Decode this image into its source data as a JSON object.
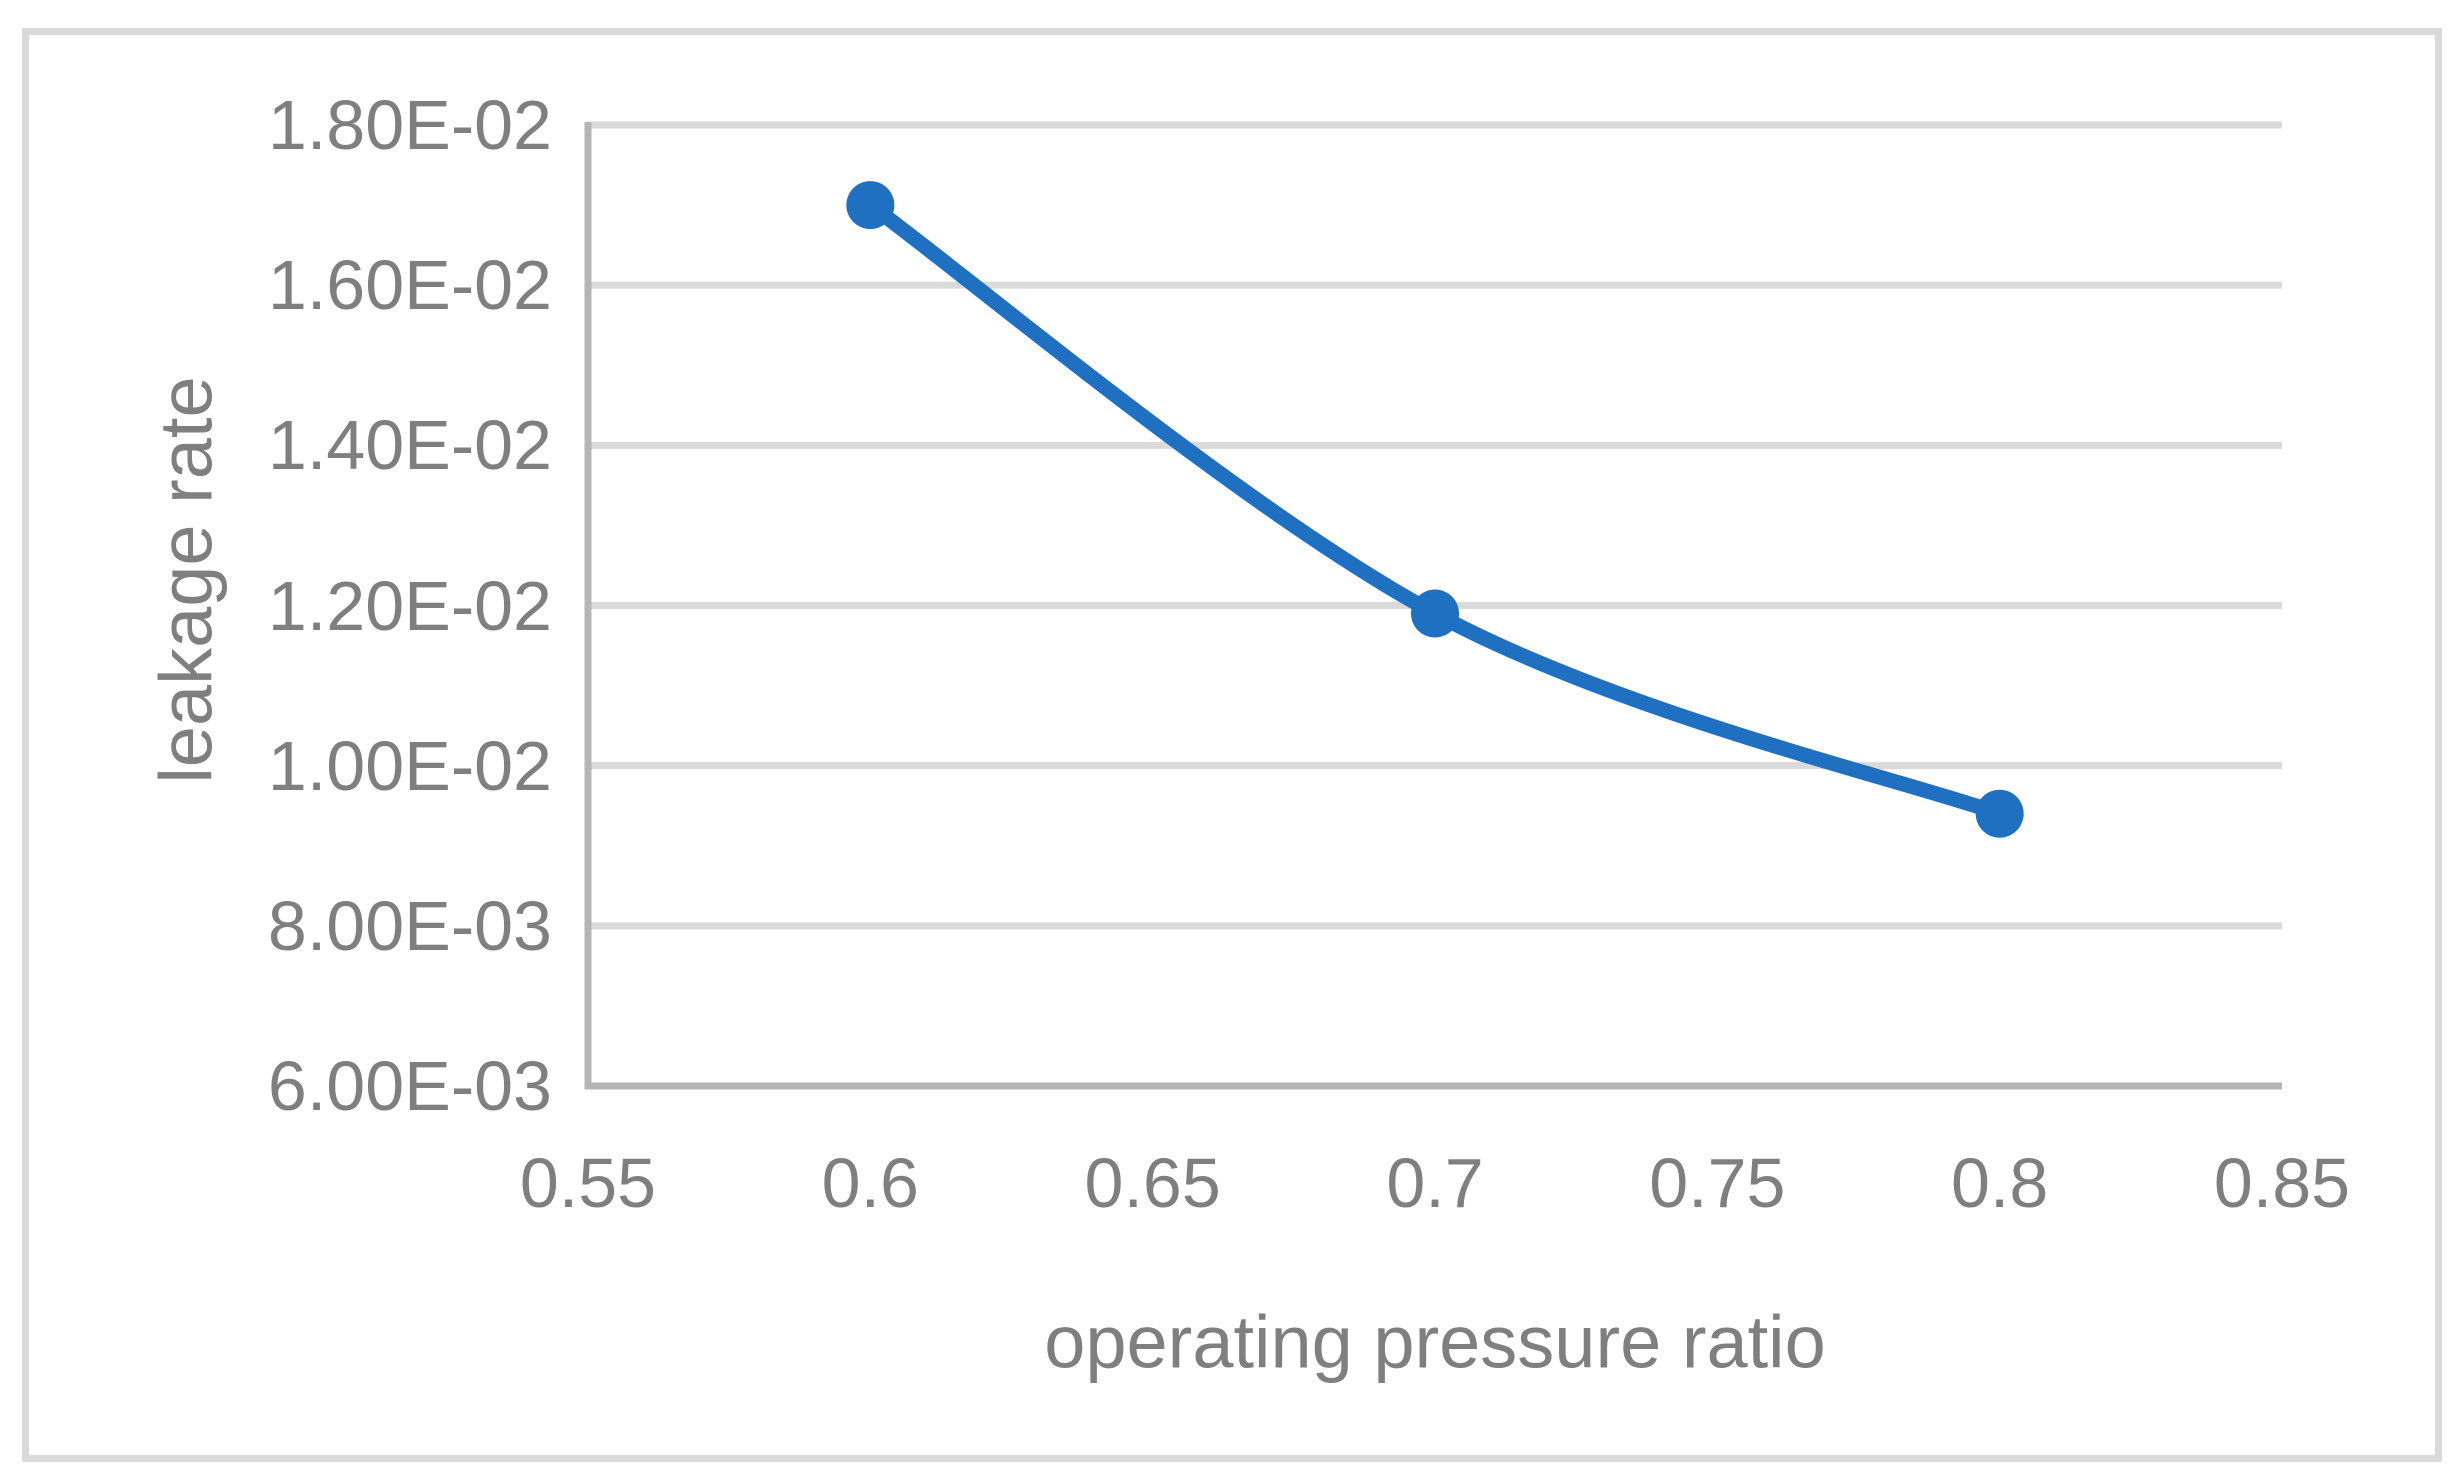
{
  "chart_data": {
    "type": "line",
    "title": "",
    "xlabel": "operating pressure ratio",
    "ylabel": "leakage rate",
    "series": [
      {
        "name": "leakage rate",
        "x": [
          0.6,
          0.7,
          0.8
        ],
        "y": [
          0.017,
          0.0119,
          0.0094
        ]
      }
    ],
    "x_ticks": [
      {
        "label": "0.55",
        "value": 0.55
      },
      {
        "label": "0.6",
        "value": 0.6
      },
      {
        "label": "0.65",
        "value": 0.65
      },
      {
        "label": "0.7",
        "value": 0.7
      },
      {
        "label": "0.75",
        "value": 0.75
      },
      {
        "label": "0.8",
        "value": 0.8
      },
      {
        "label": "0.85",
        "value": 0.85
      }
    ],
    "y_ticks": [
      {
        "label": "1.80E-02",
        "value": 0.018
      },
      {
        "label": "1.60E-02",
        "value": 0.016
      },
      {
        "label": "1.40E-02",
        "value": 0.014
      },
      {
        "label": "1.20E-02",
        "value": 0.012
      },
      {
        "label": "1.00E-02",
        "value": 0.01
      },
      {
        "label": "8.00E-03",
        "value": 0.008
      },
      {
        "label": "6.00E-03",
        "value": 0.006
      }
    ],
    "xlim": [
      0.55,
      0.85
    ],
    "ylim": [
      0.006,
      0.018
    ],
    "grid": "horizontal",
    "legend": "none",
    "smooth_line": true,
    "marker": "circle",
    "colors": {
      "series": "#1f70c1",
      "gridline": "#dadada",
      "axis": "#b5b5b5",
      "text": "#7f7f7f",
      "border": "#d9d9d9",
      "background": "#ffffff"
    }
  }
}
